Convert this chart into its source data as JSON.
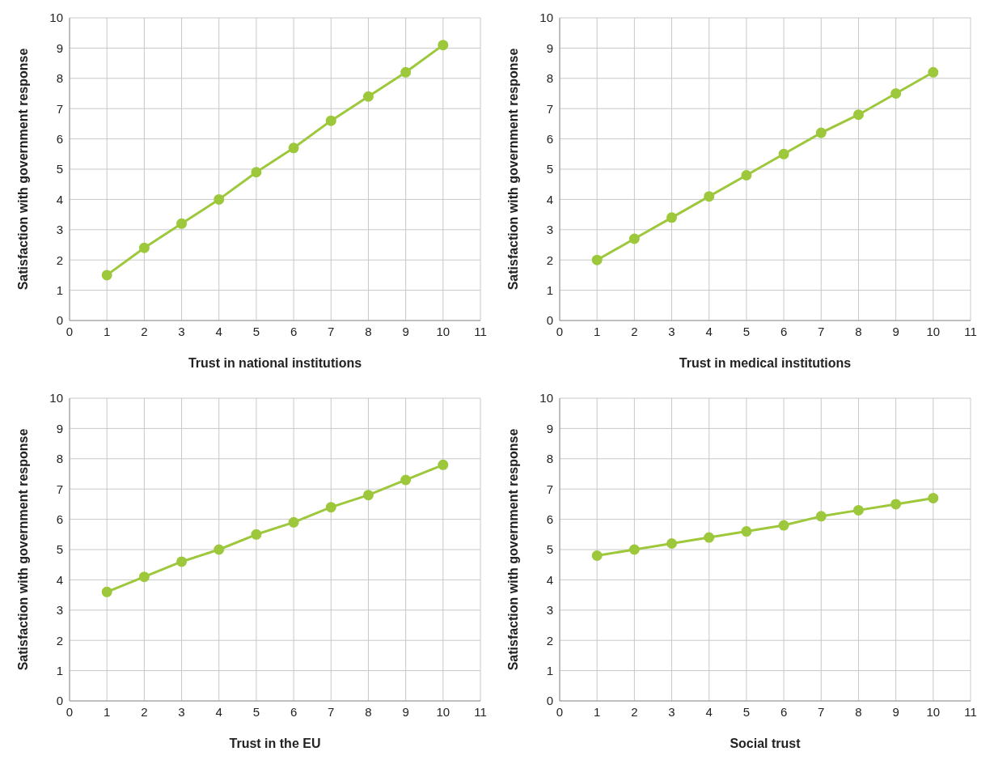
{
  "chart_data": [
    {
      "type": "line",
      "xlabel": "Trust in national institutions",
      "ylabel": "Satisfaction with government response",
      "x": [
        1,
        2,
        3,
        4,
        5,
        6,
        7,
        8,
        9,
        10
      ],
      "series": [
        {
          "color": "#9dc83c",
          "values": [
            1.5,
            2.4,
            3.2,
            4.0,
            4.9,
            5.7,
            6.6,
            7.4,
            8.2,
            9.1
          ]
        }
      ],
      "xlim": [
        0,
        11
      ],
      "xticks": [
        0,
        1,
        2,
        3,
        4,
        5,
        6,
        7,
        8,
        9,
        10,
        11
      ],
      "ylim": [
        0,
        10
      ],
      "yticks": [
        0,
        1,
        2,
        3,
        4,
        5,
        6,
        7,
        8,
        9,
        10
      ],
      "grid": true,
      "marker": "circle",
      "line_style": "solid"
    },
    {
      "type": "line",
      "xlabel": "Trust in medical institutions",
      "ylabel": "Satisfaction with government response",
      "x": [
        1,
        2,
        3,
        4,
        5,
        6,
        7,
        8,
        9,
        10
      ],
      "series": [
        {
          "color": "#9dc83c",
          "values": [
            2.0,
            2.7,
            3.4,
            4.1,
            4.8,
            5.5,
            6.2,
            6.8,
            7.5,
            8.2
          ]
        }
      ],
      "xlim": [
        0,
        11
      ],
      "xticks": [
        0,
        1,
        2,
        3,
        4,
        5,
        6,
        7,
        8,
        9,
        10,
        11
      ],
      "ylim": [
        0,
        10
      ],
      "yticks": [
        0,
        1,
        2,
        3,
        4,
        5,
        6,
        7,
        8,
        9,
        10
      ],
      "grid": true,
      "marker": "circle",
      "line_style": "solid"
    },
    {
      "type": "line",
      "xlabel": "Trust in the EU",
      "ylabel": "Satisfaction with government response",
      "x": [
        1,
        2,
        3,
        4,
        5,
        6,
        7,
        8,
        9,
        10
      ],
      "series": [
        {
          "color": "#9dc83c",
          "values": [
            3.6,
            4.1,
            4.6,
            5.0,
            5.5,
            5.9,
            6.4,
            6.8,
            7.3,
            7.8
          ]
        }
      ],
      "xlim": [
        0,
        11
      ],
      "xticks": [
        0,
        1,
        2,
        3,
        4,
        5,
        6,
        7,
        8,
        9,
        10,
        11
      ],
      "ylim": [
        0,
        10
      ],
      "yticks": [
        0,
        1,
        2,
        3,
        4,
        5,
        6,
        7,
        8,
        9,
        10
      ],
      "grid": true,
      "marker": "circle",
      "line_style": "solid"
    },
    {
      "type": "line",
      "xlabel": "Social trust",
      "ylabel": "Satisfaction with government response",
      "x": [
        1,
        2,
        3,
        4,
        5,
        6,
        7,
        8,
        9,
        10
      ],
      "series": [
        {
          "color": "#9dc83c",
          "values": [
            4.8,
            5.0,
            5.2,
            5.4,
            5.6,
            5.8,
            6.1,
            6.3,
            6.5,
            6.7
          ]
        }
      ],
      "xlim": [
        0,
        11
      ],
      "xticks": [
        0,
        1,
        2,
        3,
        4,
        5,
        6,
        7,
        8,
        9,
        10,
        11
      ],
      "ylim": [
        0,
        10
      ],
      "yticks": [
        0,
        1,
        2,
        3,
        4,
        5,
        6,
        7,
        8,
        9,
        10
      ],
      "grid": true,
      "marker": "circle",
      "line_style": "solid"
    }
  ]
}
